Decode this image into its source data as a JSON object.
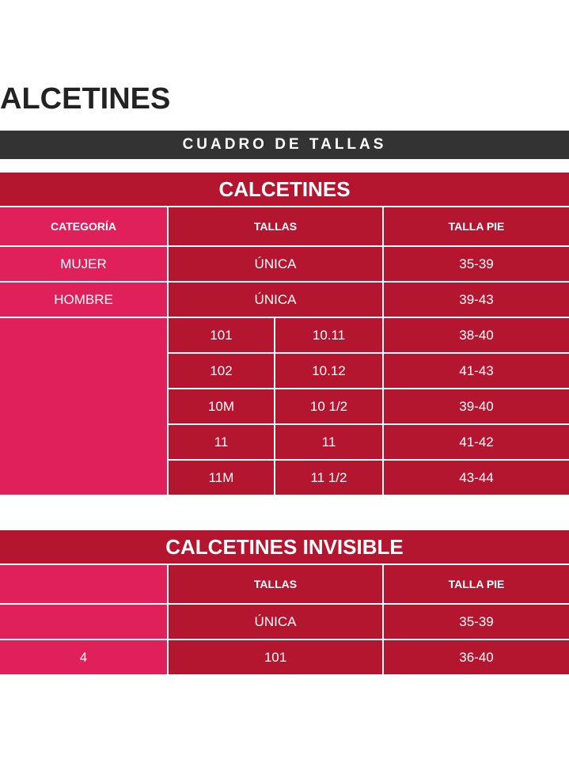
{
  "page_title": "ALCETINES",
  "banner": "CUADRO DE TALLAS",
  "colors": {
    "dark_red": "#b5162f",
    "pink": "#e0205a",
    "banner": "#333333"
  },
  "table1": {
    "title": "CALCETINES",
    "headers": [
      "CATEGORÍA",
      "TALLAS",
      "TALLA PIE"
    ],
    "rows": [
      {
        "categoria": "MUJER",
        "talla": "ÚNICA",
        "pie": "35-39"
      },
      {
        "categoria": "HOMBRE",
        "talla": "ÚNICA",
        "pie": "39-43"
      }
    ],
    "sub_rows": [
      {
        "a": "101",
        "b": "10.11",
        "pie": "38-40"
      },
      {
        "a": "102",
        "b": "10.12",
        "pie": "41-43"
      },
      {
        "a": "10M",
        "b": "10 1/2",
        "pie": "39-40"
      },
      {
        "a": "11",
        "b": "11",
        "pie": "41-42"
      },
      {
        "a": "11M",
        "b": "11 1/2",
        "pie": "43-44"
      }
    ]
  },
  "table2": {
    "title": "CALCETINES INVISIBLE",
    "headers": [
      "",
      "TALLAS",
      "TALLA PIE"
    ],
    "rows": [
      {
        "categoria": "",
        "talla": "ÚNICA",
        "pie": "35-39"
      },
      {
        "categoria": "4",
        "talla": "101",
        "pie": "36-40"
      }
    ]
  }
}
